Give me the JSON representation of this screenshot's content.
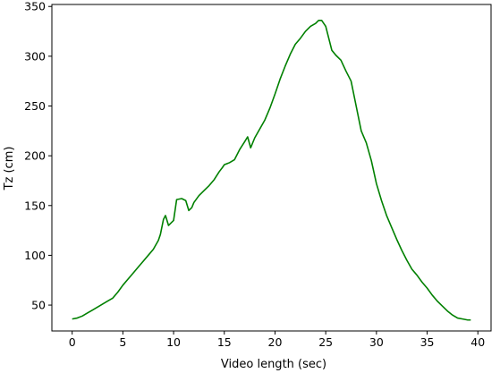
{
  "chart_data": {
    "type": "line",
    "title": "",
    "xlabel": "Video length (sec)",
    "ylabel": "Tz (cm)",
    "xlim": [
      -2,
      41.3
    ],
    "ylim": [
      24,
      352
    ],
    "xticks": [
      0,
      5,
      10,
      15,
      20,
      25,
      30,
      35,
      40
    ],
    "yticks": [
      50,
      100,
      150,
      200,
      250,
      300,
      350
    ],
    "xtick_labels": [
      "0",
      "5",
      "10",
      "15",
      "20",
      "25",
      "30",
      "35",
      "40"
    ],
    "ytick_labels": [
      "50",
      "100",
      "150",
      "200",
      "250",
      "300",
      "350"
    ],
    "grid": false,
    "legend": "none",
    "series": [
      {
        "color": "#008000",
        "x": [
          0,
          0.5,
          1,
          1.5,
          2,
          2.5,
          3,
          3.5,
          4,
          4.5,
          5,
          5.5,
          6,
          6.5,
          7,
          7.5,
          8,
          8.5,
          8.7,
          9,
          9.2,
          9.5,
          10,
          10.3,
          10.8,
          11.2,
          11.5,
          11.8,
          12,
          12.5,
          13,
          13.5,
          14,
          14.5,
          14.8,
          15,
          15.5,
          16,
          16.5,
          17,
          17.3,
          17.6,
          18,
          18.5,
          19,
          19.5,
          20,
          20.5,
          21,
          21.5,
          22,
          22.5,
          23,
          23.5,
          24,
          24.3,
          24.6,
          25,
          25.3,
          25.6,
          26,
          26.5,
          27,
          27.5,
          28,
          28.5,
          29,
          29.5,
          30,
          30.5,
          31,
          31.5,
          32,
          32.5,
          33,
          33.5,
          34,
          34.5,
          35,
          35.5,
          36,
          36.5,
          37,
          37.5,
          38,
          38.5,
          39,
          39.3
        ],
        "y": [
          36,
          37,
          39,
          42,
          45,
          48,
          51,
          54,
          57,
          63,
          70,
          76,
          82,
          88,
          94,
          100,
          106,
          115,
          121,
          136,
          140,
          130,
          135,
          156,
          157,
          155,
          145,
          148,
          153,
          160,
          165,
          170,
          176,
          184,
          188,
          191,
          193,
          196,
          206,
          214,
          219,
          208,
          218,
          227,
          236,
          248,
          262,
          277,
          290,
          302,
          312,
          318,
          325,
          330,
          333,
          336,
          336,
          330,
          318,
          306,
          301,
          296,
          285,
          275,
          250,
          225,
          213,
          195,
          172,
          155,
          140,
          128,
          116,
          105,
          95,
          86,
          80,
          73,
          67,
          60,
          54,
          49,
          44,
          40,
          37,
          36,
          35,
          35
        ]
      }
    ]
  }
}
